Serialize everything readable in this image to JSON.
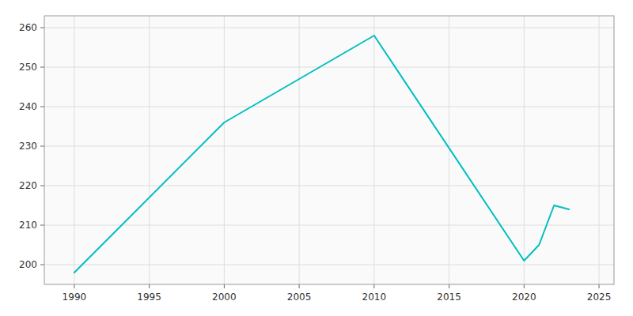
{
  "chart_data": {
    "type": "line",
    "x": [
      1990,
      2000,
      2010,
      2020,
      2021,
      2022,
      2023
    ],
    "values": [
      198,
      236,
      258,
      201,
      205,
      215,
      214
    ],
    "color": "#00BFBF",
    "xlim": [
      1988,
      2026
    ],
    "ylim": [
      195,
      263
    ],
    "xticks": [
      1990,
      1995,
      2000,
      2005,
      2010,
      2015,
      2020,
      2025
    ],
    "yticks": [
      200,
      210,
      220,
      230,
      240,
      250,
      260
    ],
    "grid": true
  }
}
